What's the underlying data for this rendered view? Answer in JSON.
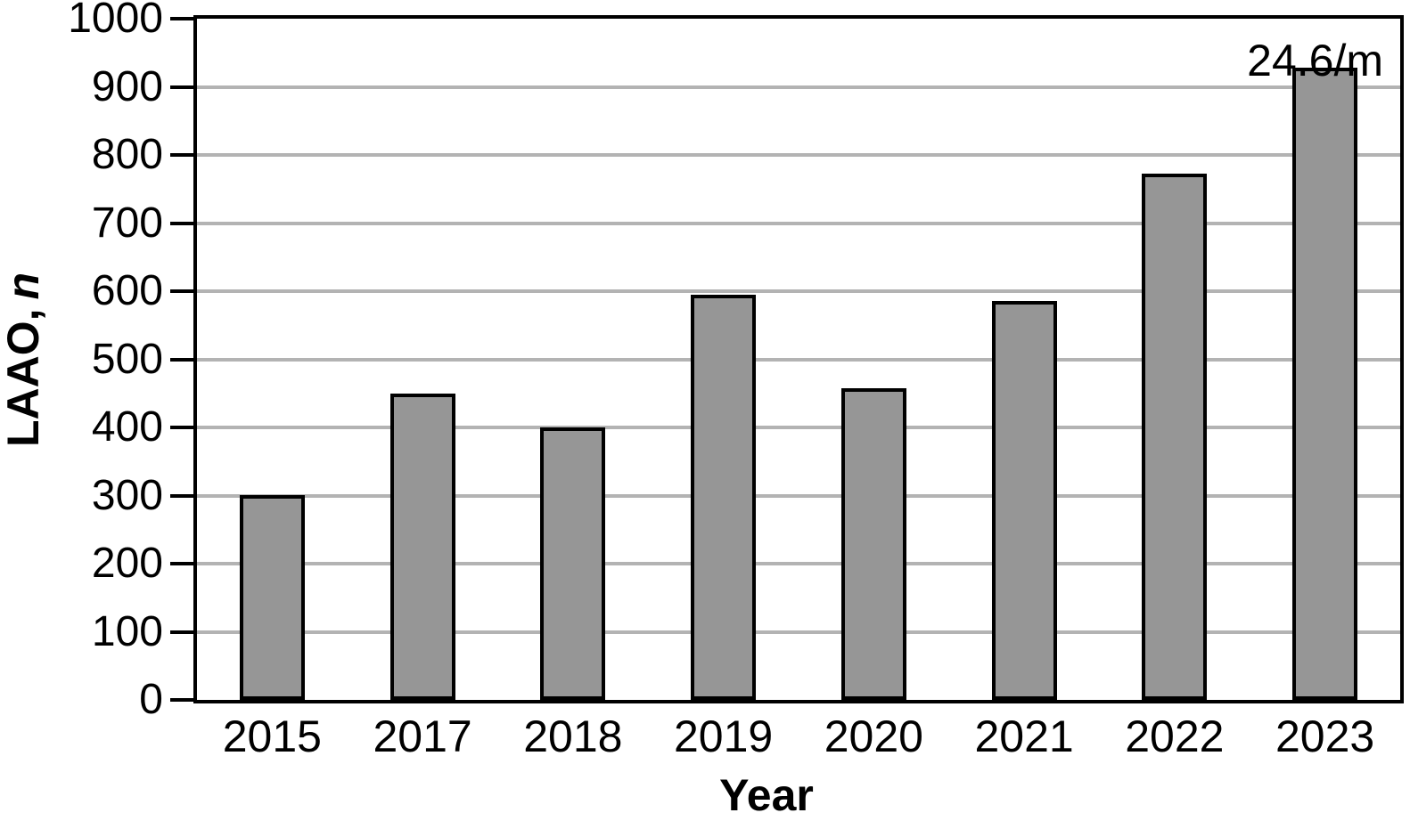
{
  "figure": {
    "ylabel_prefix": "LAAO,",
    "ylabel_n": "n",
    "xlabel": "Year",
    "annotation": "24.6/m"
  },
  "chart_data": {
    "type": "bar",
    "title": "",
    "categories": [
      "2015",
      "2017",
      "2018",
      "2019",
      "2020",
      "2021",
      "2022",
      "2023"
    ],
    "values": [
      300,
      450,
      400,
      595,
      458,
      585,
      772,
      928
    ],
    "xlabel": "Year",
    "ylabel": "LAAO, n",
    "ylim": [
      0,
      1000
    ],
    "yticks": [
      0,
      100,
      200,
      300,
      400,
      500,
      600,
      700,
      800,
      900,
      1000
    ],
    "grid": "horizontal",
    "legend": "none",
    "annotation": {
      "text": "24.6/m",
      "position": "above 2023 bar, top-right"
    },
    "colors": {
      "bar_fill": "#969696",
      "bar_border": "#000000",
      "gridline": "#b3b3b3",
      "axis_frame": "#000000",
      "text": "#000000",
      "background": "#ffffff"
    }
  }
}
